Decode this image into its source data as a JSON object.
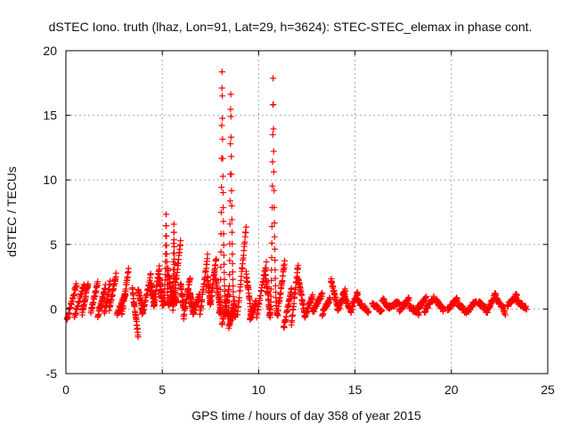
{
  "chart_data": {
    "type": "scatter",
    "title": "dSTEC Iono. truth (lhaz, Lon=91, Lat=29, h=3624): STEC-STEC_elemax in phase cont.",
    "xlabel": "GPS time / hours of day 358 of year 2015",
    "ylabel": "dSTEC  / TECUs",
    "xlim": [
      0,
      25
    ],
    "ylim": [
      -5,
      20
    ],
    "x_ticks": [
      0,
      5,
      10,
      15,
      20,
      25
    ],
    "y_ticks": [
      -5,
      0,
      5,
      10,
      15,
      20
    ],
    "grid": true,
    "marker": "+",
    "color": "#ff0000",
    "arcs": [
      {
        "x": [
          0.05,
          0.55
        ],
        "y": [
          -0.8,
          1.9
        ]
      },
      {
        "x": [
          0.45,
          0.95
        ],
        "y": [
          -0.6,
          2.0
        ]
      },
      {
        "x": [
          0.85,
          1.15
        ],
        "y": [
          -0.3,
          2.0
        ]
      },
      {
        "x": [
          1.3,
          1.65
        ],
        "y": [
          -0.2,
          2.0
        ]
      },
      {
        "x": [
          1.65,
          2.05
        ],
        "y": [
          -0.5,
          1.8
        ]
      },
      {
        "x": [
          2.0,
          2.3
        ],
        "y": [
          -0.3,
          2.1
        ]
      },
      {
        "x": [
          2.25,
          2.6
        ],
        "y": [
          -0.1,
          2.6
        ]
      },
      {
        "x": [
          2.65,
          3.1
        ],
        "y": [
          -0.4,
          1.2
        ]
      },
      {
        "x": [
          2.9,
          3.25
        ],
        "y": [
          -0.4,
          3.1
        ]
      },
      {
        "x": [
          3.45,
          3.75
        ],
        "y": [
          1.5,
          -2.1
        ]
      },
      {
        "x": [
          3.75,
          4.0
        ],
        "y": [
          1.5,
          -0.3
        ]
      },
      {
        "x": [
          3.95,
          4.4
        ],
        "y": [
          -0.5,
          2.6
        ]
      },
      {
        "x": [
          4.4,
          4.6
        ],
        "y": [
          2.0,
          0.3
        ]
      },
      {
        "x": [
          4.55,
          4.85
        ],
        "y": [
          0.2,
          3.2
        ]
      },
      {
        "x": [
          4.85,
          5.0
        ],
        "y": [
          2.5,
          0.4
        ]
      },
      {
        "x": [
          5.3,
          5.55
        ],
        "y": [
          3.0,
          0.3
        ]
      },
      {
        "x": [
          5.55,
          5.95
        ],
        "y": [
          0.0,
          5.3
        ]
      },
      {
        "x": [
          5.95,
          6.1
        ],
        "y": [
          2.0,
          0.1
        ]
      },
      {
        "x": [
          6.1,
          6.45
        ],
        "y": [
          -0.7,
          2.5
        ]
      },
      {
        "x": [
          6.45,
          6.6
        ],
        "y": [
          1.3,
          -0.4
        ]
      },
      {
        "x": [
          6.6,
          6.95
        ],
        "y": [
          -0.3,
          1.1
        ]
      },
      {
        "x": [
          6.95,
          7.35
        ],
        "y": [
          -0.5,
          4.1
        ]
      },
      {
        "x": [
          7.35,
          7.5
        ],
        "y": [
          2.5,
          0.3
        ]
      },
      {
        "x": [
          7.5,
          7.8
        ],
        "y": [
          0.4,
          4.0
        ]
      },
      {
        "x": [
          7.75,
          8.05
        ],
        "y": [
          2.5,
          -0.3
        ]
      },
      {
        "x": [
          8.1,
          8.45
        ],
        "y": [
          -1.2,
          1.5
        ]
      },
      {
        "x": [
          8.45,
          8.75
        ],
        "y": [
          -1.4,
          0.5
        ]
      },
      {
        "x": [
          8.9,
          9.35
        ],
        "y": [
          -0.5,
          6.3
        ]
      },
      {
        "x": [
          9.35,
          9.65
        ],
        "y": [
          2.8,
          -0.7
        ]
      },
      {
        "x": [
          9.55,
          9.85
        ],
        "y": [
          -0.7,
          0.5
        ]
      },
      {
        "x": [
          9.9,
          10.4
        ],
        "y": [
          -0.5,
          3.5
        ]
      },
      {
        "x": [
          10.35,
          10.6
        ],
        "y": [
          2.7,
          -0.5
        ]
      },
      {
        "x": [
          11.0,
          11.35
        ],
        "y": [
          -0.1,
          3.6
        ]
      },
      {
        "x": [
          11.3,
          11.7
        ],
        "y": [
          -1.5,
          1.5
        ]
      },
      {
        "x": [
          11.7,
          12.05
        ],
        "y": [
          -1.2,
          3.5
        ]
      },
      {
        "x": [
          12.05,
          12.4
        ],
        "y": [
          2.5,
          -0.6
        ]
      },
      {
        "x": [
          12.4,
          12.8
        ],
        "y": [
          -0.5,
          1.0
        ]
      },
      {
        "x": [
          12.8,
          13.3
        ],
        "y": [
          -0.3,
          1.2
        ]
      },
      {
        "x": [
          13.3,
          13.7
        ],
        "y": [
          -0.4,
          0.8
        ]
      },
      {
        "x": [
          13.75,
          14.1
        ],
        "y": [
          2.3,
          0.2
        ]
      },
      {
        "x": [
          14.1,
          14.5
        ],
        "y": [
          -0.1,
          1.5
        ]
      },
      {
        "x": [
          14.4,
          14.8
        ],
        "y": [
          1.2,
          -0.2
        ]
      },
      {
        "x": [
          14.8,
          15.15
        ],
        "y": [
          0.0,
          1.3
        ]
      },
      {
        "x": [
          15.15,
          15.7
        ],
        "y": [
          0.6,
          -0.2
        ]
      },
      {
        "x": [
          15.9,
          16.4
        ],
        "y": [
          0.4,
          -0.2
        ]
      },
      {
        "x": [
          16.4,
          16.8
        ],
        "y": [
          0.8,
          0.0
        ]
      },
      {
        "x": [
          16.8,
          17.3
        ],
        "y": [
          0.2,
          0.5
        ]
      },
      {
        "x": [
          17.3,
          17.8
        ],
        "y": [
          -0.1,
          0.8
        ]
      },
      {
        "x": [
          17.8,
          18.3
        ],
        "y": [
          0.2,
          -0.3
        ]
      },
      {
        "x": [
          18.2,
          18.7
        ],
        "y": [
          0.0,
          0.8
        ]
      },
      {
        "x": [
          18.6,
          19.1
        ],
        "y": [
          -0.2,
          0.9
        ]
      },
      {
        "x": [
          19.2,
          19.6
        ],
        "y": [
          0.7,
          -0.1
        ]
      },
      {
        "x": [
          19.8,
          20.3
        ],
        "y": [
          0.0,
          0.8
        ]
      },
      {
        "x": [
          20.3,
          20.8
        ],
        "y": [
          0.5,
          -0.3
        ]
      },
      {
        "x": [
          20.8,
          21.3
        ],
        "y": [
          -0.3,
          0.7
        ]
      },
      {
        "x": [
          21.4,
          21.8
        ],
        "y": [
          0.5,
          0.0
        ]
      },
      {
        "x": [
          21.8,
          22.3
        ],
        "y": [
          -0.3,
          1.2
        ]
      },
      {
        "x": [
          22.3,
          22.8
        ],
        "y": [
          0.9,
          -0.3
        ]
      },
      {
        "x": [
          22.9,
          23.4
        ],
        "y": [
          0.3,
          1.1
        ]
      },
      {
        "x": [
          23.4,
          23.9
        ],
        "y": [
          0.6,
          0.1
        ]
      }
    ],
    "spikes": [
      {
        "x": [
          5.05,
          5.35
        ],
        "peak_x": 5.2,
        "peak": 7.8,
        "base": 0.3
      },
      {
        "x": [
          5.5,
          5.75
        ],
        "peak_x": 5.6,
        "peak": 6.7,
        "base": 0.5
      },
      {
        "x": [
          7.95,
          8.35
        ],
        "peak_x": 8.1,
        "peak": 19.1,
        "base": -0.3
      },
      {
        "x": [
          8.4,
          8.8
        ],
        "peak_x": 8.55,
        "peak": 17.3,
        "base": -0.6
      },
      {
        "x": [
          10.55,
          11.0
        ],
        "peak_x": 10.75,
        "peak": 18.1,
        "base": -0.5
      }
    ]
  }
}
